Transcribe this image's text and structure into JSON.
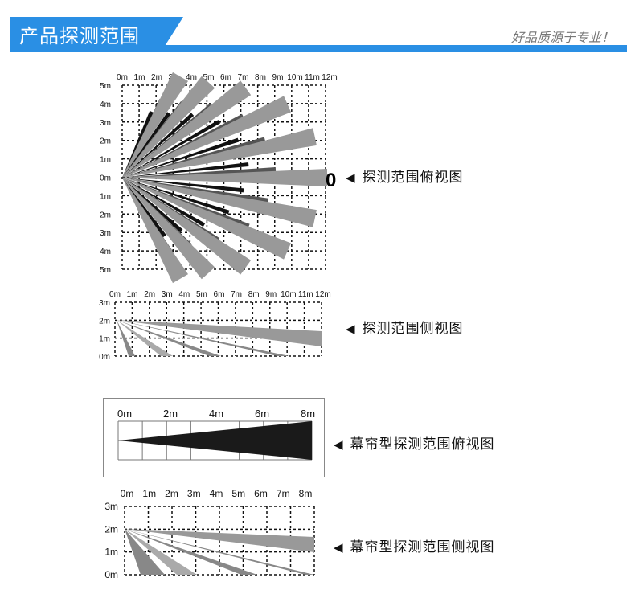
{
  "header": {
    "title": "产品探测范围",
    "slogan": "好品质源于专业！",
    "accent": "#2a8fe4"
  },
  "diagram_top": {
    "x_ticks": [
      "0m",
      "1m",
      "2m",
      "3m",
      "4m",
      "5m",
      "6m",
      "7m",
      "8m",
      "9m",
      "10m",
      "11m",
      "12m"
    ],
    "y_ticks": [
      "5m",
      "4m",
      "3m",
      "2m",
      "1m",
      "0m",
      "1m",
      "2m",
      "3m",
      "4m",
      "5m"
    ],
    "marker": "0",
    "caption": "探测范围俯视图"
  },
  "diagram_side": {
    "x_ticks": [
      "0m",
      "1m",
      "2m",
      "3m",
      "4m",
      "5m",
      "6m",
      "7m",
      "8m",
      "9m",
      "10m",
      "11m",
      "12m"
    ],
    "y_ticks": [
      "3m",
      "2m",
      "1m",
      "0m"
    ],
    "caption": "探测范围侧视图"
  },
  "curtain_top": {
    "x_ticks": [
      "0m",
      "2m",
      "4m",
      "6m",
      "8m"
    ],
    "caption": "幕帘型探测范围俯视图"
  },
  "curtain_side": {
    "x_ticks": [
      "0m",
      "1m",
      "2m",
      "3m",
      "4m",
      "5m",
      "6m",
      "7m",
      "8m"
    ],
    "y_ticks": [
      "3m",
      "2m",
      "1m",
      "0m"
    ],
    "caption": "幕帘型探测范围侧视图"
  },
  "arrow": "◀"
}
